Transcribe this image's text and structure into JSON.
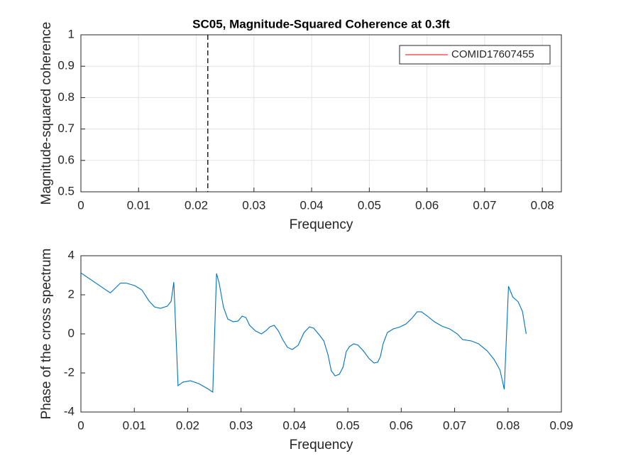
{
  "chart_data": [
    {
      "type": "line",
      "title": "SC05, Magnitude-Squared Coherence at 0.3ft",
      "xlabel": "Frequency",
      "ylabel": "Magnitude-squared coherence",
      "xlim": [
        0,
        0.0833
      ],
      "ylim": [
        0.5,
        1
      ],
      "xticks": [
        0,
        0.01,
        0.02,
        0.03,
        0.04,
        0.05,
        0.06,
        0.07,
        0.08
      ],
      "yticks": [
        0.5,
        0.6,
        0.7,
        0.8,
        0.9,
        1
      ],
      "grid": true,
      "vline": 0.022,
      "legend": "northeast",
      "series": [
        {
          "name": "COMID17607455",
          "color": "#ff0000"
        }
      ]
    },
    {
      "type": "line",
      "xlabel": "Frequency",
      "ylabel": "Phase of the cross spectrum",
      "xlim": [
        0,
        0.09
      ],
      "ylim": [
        -4,
        4
      ],
      "xticks": [
        0,
        0.01,
        0.02,
        0.03,
        0.04,
        0.05,
        0.06,
        0.07,
        0.08,
        0.09
      ],
      "yticks": [
        -4,
        -2,
        0,
        2,
        4
      ],
      "grid": false,
      "x": [
        0,
        0.0021,
        0.0055,
        0.0061,
        0.0074,
        0.0085,
        0.0101,
        0.0114,
        0.0128,
        0.0138,
        0.0149,
        0.0162,
        0.0169,
        0.0174,
        0.0182,
        0.0191,
        0.0205,
        0.0221,
        0.0237,
        0.0247,
        0.0254,
        0.0259,
        0.0267,
        0.0275,
        0.0285,
        0.0294,
        0.0302,
        0.0309,
        0.0316,
        0.0327,
        0.0338,
        0.0346,
        0.0354,
        0.0362,
        0.037,
        0.0378,
        0.0387,
        0.0396,
        0.0407,
        0.0418,
        0.0428,
        0.0436,
        0.0447,
        0.0455,
        0.0463,
        0.0469,
        0.0476,
        0.0484,
        0.0491,
        0.0497,
        0.0503,
        0.0511,
        0.0519,
        0.0529,
        0.054,
        0.0549,
        0.0556,
        0.0561,
        0.0566,
        0.0574,
        0.0585,
        0.0598,
        0.0609,
        0.062,
        0.063,
        0.0638,
        0.0649,
        0.0662,
        0.0676,
        0.0691,
        0.0705,
        0.0715,
        0.0731,
        0.0745,
        0.0761,
        0.0774,
        0.0785,
        0.0793,
        0.0801,
        0.0809,
        0.0819,
        0.0827,
        0.0834
      ],
      "series": [
        {
          "color": "#0072bd",
          "values": [
            3.12,
            2.73,
            2.1,
            2.25,
            2.6,
            2.6,
            2.47,
            2.25,
            1.67,
            1.38,
            1.31,
            1.42,
            1.67,
            2.65,
            -2.65,
            -2.47,
            -2.4,
            -2.55,
            -2.8,
            -2.98,
            3.09,
            2.6,
            1.38,
            0.76,
            0.62,
            0.65,
            0.91,
            0.84,
            0.44,
            0.15,
            0,
            0.15,
            0.36,
            0.44,
            0.15,
            -0.29,
            -0.69,
            -0.8,
            -0.58,
            0.07,
            0.36,
            0.29,
            -0.07,
            -0.36,
            -1.09,
            -1.89,
            -2.15,
            -2.07,
            -1.71,
            -0.91,
            -0.65,
            -0.51,
            -0.58,
            -0.87,
            -1.27,
            -1.49,
            -1.45,
            -1.16,
            -0.51,
            0.07,
            0.25,
            0.36,
            0.51,
            0.8,
            1.13,
            1.13,
            0.91,
            0.62,
            0.4,
            0.25,
            0,
            -0.29,
            -0.36,
            -0.51,
            -0.87,
            -1.31,
            -1.85,
            -2.84,
            2.44,
            1.89,
            1.64,
            1.16,
            0
          ]
        }
      ]
    }
  ]
}
